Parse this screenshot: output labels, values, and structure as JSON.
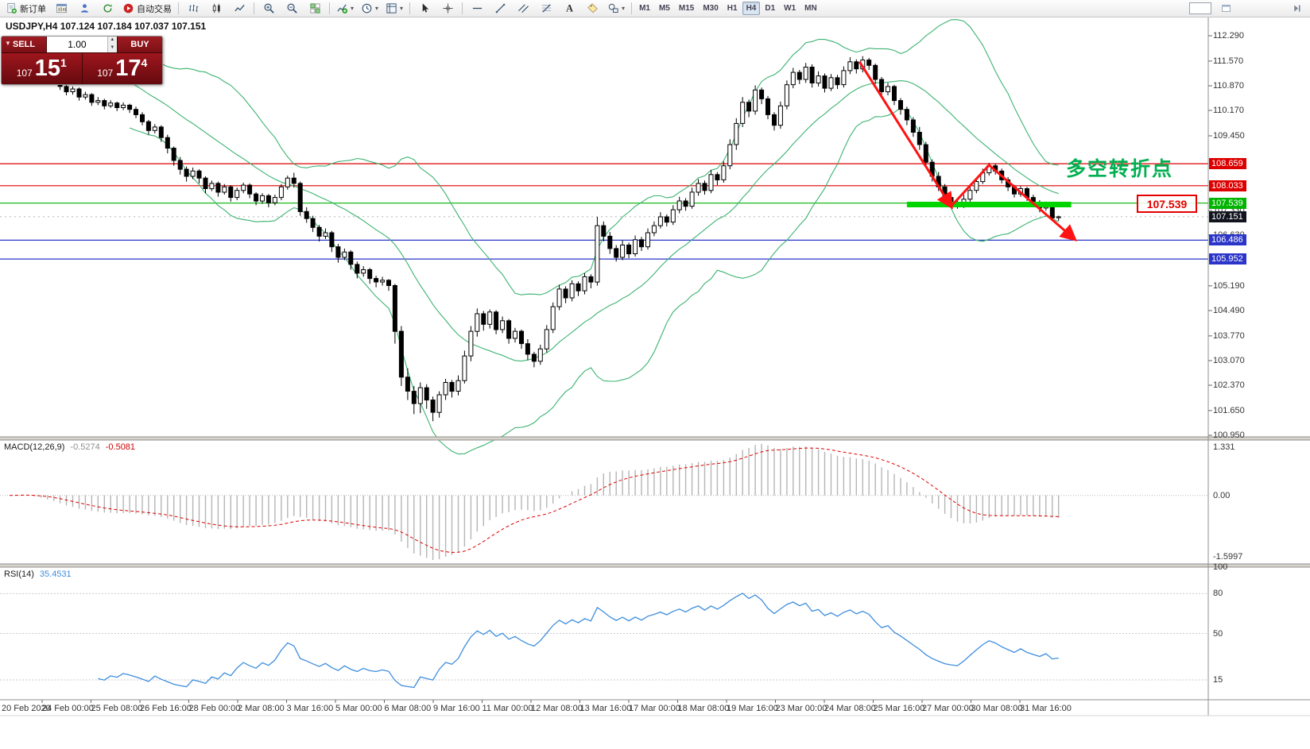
{
  "header": {
    "symbol_line": "USDJPY,H4  107.124 107.184 107.037 107.151"
  },
  "toolbar": {
    "items": [
      {
        "icon": "docplus",
        "label": "新订单",
        "name": "new-order-button"
      },
      {
        "icon": "wincandle",
        "name": "new-chart-button"
      },
      {
        "icon": "person",
        "name": "profiles-button"
      },
      {
        "icon": "refresh",
        "name": "refresh-button"
      },
      {
        "icon": "play",
        "label": "自动交易",
        "name": "autotrading-button"
      },
      {
        "sep": true
      },
      {
        "icon": "bars",
        "name": "bar-chart-button"
      },
      {
        "icon": "candles",
        "name": "candlestick-chart-button"
      },
      {
        "icon": "linechart",
        "name": "line-chart-button"
      },
      {
        "sep": true
      },
      {
        "icon": "zoomin",
        "name": "zoom-in-button"
      },
      {
        "icon": "zoomout",
        "name": "zoom-out-button"
      },
      {
        "icon": "grid",
        "name": "tile-windows-button"
      },
      {
        "sep": true
      },
      {
        "icon": "indplus",
        "caret": true,
        "name": "indicators-button"
      },
      {
        "icon": "clock",
        "caret": true,
        "name": "periods-button"
      },
      {
        "icon": "template",
        "caret": true,
        "name": "templates-button"
      },
      {
        "sep": true
      },
      {
        "icon": "cursor",
        "name": "cursor-button"
      },
      {
        "icon": "cross",
        "name": "crosshair-button"
      },
      {
        "sep": true
      },
      {
        "icon": "hline",
        "name": "horizontal-line-button"
      },
      {
        "icon": "tline",
        "name": "trendline-button"
      },
      {
        "icon": "channel",
        "name": "channel-button"
      },
      {
        "icon": "fibo",
        "name": "fibonacci-button"
      },
      {
        "icon": "textA",
        "name": "text-button"
      },
      {
        "icon": "labeltag",
        "name": "label-button"
      },
      {
        "icon": "shapes",
        "caret": true,
        "name": "shapes-button"
      },
      {
        "sep": true
      }
    ],
    "timeframes": [
      "M1",
      "M5",
      "M15",
      "M30",
      "H1",
      "H4",
      "D1",
      "W1",
      "MN"
    ],
    "active_timeframe": "H4"
  },
  "one_click": {
    "sell_label": "SELL",
    "buy_label": "BUY",
    "volume": "1.00",
    "sell_prefix": "107",
    "sell_big": "15",
    "sell_sup": "1",
    "buy_prefix": "107",
    "buy_big": "17",
    "buy_sup": "4"
  },
  "indicators": {
    "macd_title": "MACD(12,26,9)",
    "macd_value_main": "-0.5274",
    "macd_value_signal": "-0.5081",
    "rsi_title": "RSI(14)",
    "rsi_value": "35.4531"
  },
  "annotations": {
    "pivot_text": "多空转折点",
    "callout_price": "107.539"
  },
  "levels": [
    {
      "label": "108.659",
      "price": 108.659,
      "color": "#dd0000"
    },
    {
      "label": "108.033",
      "price": 108.033,
      "color": "#dd0000"
    },
    {
      "label": "107.539",
      "price": 107.539,
      "color": "#00b400"
    },
    {
      "label": "106.486",
      "price": 106.486,
      "color": "#2b35c8"
    },
    {
      "label": "105.952",
      "price": 105.952,
      "color": "#2b35c8"
    }
  ],
  "bid": {
    "label": "107.151",
    "price": 107.151
  },
  "axis": {
    "price_ticks": [
      "112.290",
      "111.570",
      "110.870",
      "110.170",
      "109.450",
      "107.330",
      "106.630",
      "105.190",
      "104.490",
      "103.770",
      "103.070",
      "102.370",
      "101.650",
      "100.950"
    ],
    "macd_ticks": [
      "1.331",
      "0.00",
      "-1.5997"
    ],
    "rsi_ticks": [
      "100",
      "80",
      "50",
      "15"
    ]
  },
  "time_axis": [
    "20 Feb 2020",
    "24 Feb 00:00",
    "25 Feb 08:00",
    "26 Feb 16:00",
    "28 Feb 00:00",
    "2 Mar 08:00",
    "3 Mar 16:00",
    "5 Mar 00:00",
    "6 Mar 08:00",
    "9 Mar 16:00",
    "11 Mar 00:00",
    "12 Mar 08:00",
    "13 Mar 16:00",
    "17 Mar 00:00",
    "18 Mar 08:00",
    "19 Mar 16:00",
    "23 Mar 00:00",
    "24 Mar 08:00",
    "25 Mar 16:00",
    "27 Mar 00:00",
    "30 Mar 08:00",
    "31 Mar 16:00"
  ],
  "chart_data": {
    "type": "candlestick",
    "symbol": "USDJPY",
    "timeframe": "H4",
    "title": "USDJPY,H4",
    "ohlc_current": {
      "open": 107.124,
      "high": 107.184,
      "low": 107.037,
      "close": 107.151
    },
    "price_range": [
      100.95,
      112.29
    ],
    "candles": [
      [
        111.8,
        112.05,
        111.7,
        111.95
      ],
      [
        111.95,
        112.22,
        111.85,
        112.1
      ],
      [
        112.1,
        112.18,
        111.95,
        112.05
      ],
      [
        112.05,
        112.1,
        111.75,
        111.85
      ],
      [
        111.85,
        111.92,
        111.5,
        111.6
      ],
      [
        111.6,
        111.72,
        111.35,
        111.45
      ],
      [
        111.45,
        111.58,
        111.25,
        111.35
      ],
      [
        111.35,
        111.42,
        111.1,
        111.2
      ],
      [
        111.2,
        111.25,
        110.75,
        110.85
      ],
      [
        110.85,
        110.98,
        110.6,
        110.7
      ],
      [
        110.7,
        110.85,
        110.62,
        110.78
      ],
      [
        110.78,
        110.82,
        110.45,
        110.55
      ],
      [
        110.55,
        110.7,
        110.48,
        110.62
      ],
      [
        110.62,
        110.66,
        110.3,
        110.4
      ],
      [
        110.4,
        110.55,
        110.32,
        110.45
      ],
      [
        110.45,
        110.5,
        110.2,
        110.3
      ],
      [
        110.3,
        110.46,
        110.24,
        110.38
      ],
      [
        110.38,
        110.42,
        110.15,
        110.25
      ],
      [
        110.25,
        110.4,
        110.18,
        110.32
      ],
      [
        110.32,
        110.36,
        110.1,
        110.2
      ],
      [
        110.2,
        110.28,
        109.95,
        110.05
      ],
      [
        110.05,
        110.12,
        109.75,
        109.85
      ],
      [
        109.85,
        109.9,
        109.48,
        109.6
      ],
      [
        109.6,
        109.78,
        109.52,
        109.7
      ],
      [
        109.7,
        109.75,
        109.28,
        109.4
      ],
      [
        109.4,
        109.48,
        108.95,
        109.1
      ],
      [
        109.1,
        109.15,
        108.6,
        108.75
      ],
      [
        108.75,
        108.85,
        108.35,
        108.5
      ],
      [
        108.5,
        108.58,
        108.15,
        108.3
      ],
      [
        108.3,
        108.55,
        108.22,
        108.45
      ],
      [
        108.45,
        108.5,
        108.1,
        108.25
      ],
      [
        108.25,
        108.3,
        107.82,
        107.95
      ],
      [
        107.95,
        108.18,
        107.88,
        108.1
      ],
      [
        108.1,
        108.15,
        107.72,
        107.85
      ],
      [
        107.85,
        108.08,
        107.78,
        108.0
      ],
      [
        108.0,
        108.05,
        107.58,
        107.7
      ],
      [
        107.7,
        107.98,
        107.62,
        107.9
      ],
      [
        107.9,
        108.12,
        107.82,
        108.05
      ],
      [
        108.05,
        108.1,
        107.68,
        107.8
      ],
      [
        107.8,
        107.85,
        107.48,
        107.6
      ],
      [
        107.6,
        107.82,
        107.52,
        107.75
      ],
      [
        107.75,
        107.8,
        107.42,
        107.55
      ],
      [
        107.55,
        107.78,
        107.48,
        107.7
      ],
      [
        107.7,
        108.08,
        107.62,
        108.0
      ],
      [
        108.0,
        108.32,
        107.92,
        108.25
      ],
      [
        108.25,
        108.4,
        107.98,
        108.1
      ],
      [
        108.1,
        108.15,
        107.18,
        107.3
      ],
      [
        107.3,
        107.42,
        106.98,
        107.1
      ],
      [
        107.1,
        107.18,
        106.72,
        106.85
      ],
      [
        106.85,
        106.92,
        106.45,
        106.6
      ],
      [
        106.6,
        106.82,
        106.52,
        106.7
      ],
      [
        106.7,
        106.75,
        106.15,
        106.3
      ],
      [
        106.3,
        106.38,
        105.85,
        106.0
      ],
      [
        106.0,
        106.25,
        105.92,
        106.15
      ],
      [
        106.15,
        106.2,
        105.65,
        105.8
      ],
      [
        105.8,
        105.88,
        105.4,
        105.55
      ],
      [
        105.55,
        105.75,
        105.45,
        105.65
      ],
      [
        105.65,
        105.7,
        105.25,
        105.4
      ],
      [
        105.4,
        105.48,
        105.15,
        105.3
      ],
      [
        105.3,
        105.45,
        105.2,
        105.35
      ],
      [
        105.35,
        105.38,
        105.05,
        105.2
      ],
      [
        105.2,
        105.25,
        103.55,
        103.9
      ],
      [
        103.9,
        104.05,
        102.35,
        102.6
      ],
      [
        102.6,
        102.85,
        101.95,
        102.2
      ],
      [
        102.2,
        102.35,
        101.55,
        101.85
      ],
      [
        101.85,
        102.45,
        101.58,
        102.3
      ],
      [
        102.3,
        102.4,
        101.7,
        101.95
      ],
      [
        101.95,
        102.05,
        101.35,
        101.6
      ],
      [
        101.6,
        102.2,
        101.45,
        102.1
      ],
      [
        102.1,
        102.55,
        101.95,
        102.45
      ],
      [
        102.45,
        102.52,
        102.02,
        102.2
      ],
      [
        102.2,
        102.65,
        102.08,
        102.5
      ],
      [
        102.5,
        103.35,
        102.42,
        103.2
      ],
      [
        103.2,
        104.05,
        103.05,
        103.9
      ],
      [
        103.9,
        104.55,
        103.75,
        104.4
      ],
      [
        104.4,
        104.48,
        103.92,
        104.1
      ],
      [
        104.1,
        104.52,
        103.98,
        104.45
      ],
      [
        104.45,
        104.5,
        103.82,
        103.95
      ],
      [
        103.95,
        104.32,
        103.85,
        104.2
      ],
      [
        104.2,
        104.25,
        103.55,
        103.7
      ],
      [
        103.7,
        104.0,
        103.58,
        103.9
      ],
      [
        103.9,
        103.95,
        103.4,
        103.55
      ],
      [
        103.55,
        103.68,
        103.08,
        103.25
      ],
      [
        103.25,
        103.32,
        102.88,
        103.05
      ],
      [
        103.05,
        103.52,
        102.95,
        103.4
      ],
      [
        103.4,
        104.08,
        103.3,
        103.95
      ],
      [
        103.95,
        104.72,
        103.85,
        104.6
      ],
      [
        104.6,
        105.22,
        104.5,
        105.1
      ],
      [
        105.1,
        105.18,
        104.7,
        104.85
      ],
      [
        104.85,
        105.35,
        104.75,
        105.25
      ],
      [
        105.25,
        105.32,
        104.9,
        105.05
      ],
      [
        105.05,
        105.55,
        104.95,
        105.45
      ],
      [
        105.45,
        105.52,
        105.12,
        105.3
      ],
      [
        105.3,
        107.15,
        105.2,
        106.9
      ],
      [
        106.9,
        107.02,
        106.45,
        106.6
      ],
      [
        106.6,
        106.72,
        106.1,
        106.25
      ],
      [
        106.25,
        106.35,
        105.88,
        106.0
      ],
      [
        106.0,
        106.48,
        105.92,
        106.35
      ],
      [
        106.35,
        106.42,
        105.98,
        106.1
      ],
      [
        106.1,
        106.62,
        106.02,
        106.5
      ],
      [
        106.5,
        106.58,
        106.18,
        106.3
      ],
      [
        106.3,
        106.82,
        106.22,
        106.7
      ],
      [
        106.7,
        107.02,
        106.6,
        106.9
      ],
      [
        106.9,
        107.28,
        106.82,
        107.15
      ],
      [
        107.15,
        107.22,
        106.88,
        107.0
      ],
      [
        107.0,
        107.48,
        106.92,
        107.35
      ],
      [
        107.35,
        107.72,
        107.25,
        107.6
      ],
      [
        107.6,
        107.68,
        107.32,
        107.45
      ],
      [
        107.45,
        107.98,
        107.38,
        107.85
      ],
      [
        107.85,
        108.22,
        107.75,
        108.1
      ],
      [
        108.1,
        108.18,
        107.78,
        107.9
      ],
      [
        107.9,
        108.48,
        107.82,
        108.35
      ],
      [
        108.35,
        108.42,
        108.05,
        108.2
      ],
      [
        108.2,
        108.72,
        108.12,
        108.6
      ],
      [
        108.6,
        109.35,
        108.5,
        109.2
      ],
      [
        109.2,
        109.95,
        109.05,
        109.8
      ],
      [
        109.8,
        110.55,
        109.7,
        110.4
      ],
      [
        110.4,
        110.48,
        109.98,
        110.15
      ],
      [
        110.15,
        110.88,
        110.05,
        110.75
      ],
      [
        110.75,
        110.82,
        110.35,
        110.5
      ],
      [
        110.5,
        110.58,
        109.92,
        110.05
      ],
      [
        110.05,
        110.12,
        109.6,
        109.75
      ],
      [
        109.75,
        110.42,
        109.65,
        110.3
      ],
      [
        110.3,
        111.02,
        110.2,
        110.9
      ],
      [
        110.9,
        111.38,
        110.8,
        111.25
      ],
      [
        111.25,
        111.32,
        110.92,
        111.05
      ],
      [
        111.05,
        111.52,
        110.95,
        111.4
      ],
      [
        111.4,
        111.48,
        110.82,
        110.95
      ],
      [
        110.95,
        111.28,
        110.85,
        111.15
      ],
      [
        111.15,
        111.22,
        110.68,
        110.8
      ],
      [
        110.8,
        111.2,
        110.72,
        111.1
      ],
      [
        111.1,
        111.18,
        110.78,
        110.9
      ],
      [
        110.9,
        111.42,
        110.82,
        111.3
      ],
      [
        111.3,
        111.68,
        111.2,
        111.55
      ],
      [
        111.55,
        111.62,
        111.22,
        111.35
      ],
      [
        111.35,
        111.71,
        111.25,
        111.6
      ],
      [
        111.6,
        111.66,
        111.32,
        111.45
      ],
      [
        111.45,
        111.5,
        110.92,
        111.05
      ],
      [
        111.05,
        111.12,
        110.58,
        110.7
      ],
      [
        110.7,
        110.95,
        110.6,
        110.85
      ],
      [
        110.85,
        110.9,
        110.32,
        110.45
      ],
      [
        110.45,
        110.52,
        110.05,
        110.2
      ],
      [
        110.2,
        110.28,
        109.75,
        109.9
      ],
      [
        109.9,
        109.98,
        109.42,
        109.55
      ],
      [
        109.55,
        109.7,
        109.05,
        109.2
      ],
      [
        109.2,
        109.28,
        108.55,
        108.7
      ],
      [
        108.7,
        108.78,
        108.15,
        108.3
      ],
      [
        108.3,
        108.42,
        107.88,
        108.0
      ],
      [
        108.0,
        108.08,
        107.55,
        107.7
      ],
      [
        107.7,
        107.82,
        107.42,
        107.55
      ],
      [
        107.55,
        107.68,
        107.38,
        107.45
      ],
      [
        107.45,
        107.78,
        107.4,
        107.65
      ],
      [
        107.65,
        108.02,
        107.58,
        107.9
      ],
      [
        107.9,
        108.25,
        107.82,
        108.15
      ],
      [
        108.15,
        108.52,
        108.08,
        108.4
      ],
      [
        108.4,
        108.68,
        108.32,
        108.6
      ],
      [
        108.6,
        108.66,
        108.35,
        108.45
      ],
      [
        108.45,
        108.52,
        108.1,
        108.2
      ],
      [
        108.2,
        108.28,
        107.88,
        108.0
      ],
      [
        108.0,
        108.06,
        107.7,
        107.8
      ],
      [
        107.8,
        108.02,
        107.72,
        107.95
      ],
      [
        107.95,
        108.0,
        107.6,
        107.7
      ],
      [
        107.7,
        107.78,
        107.45,
        107.55
      ],
      [
        107.55,
        107.62,
        107.28,
        107.4
      ],
      [
        107.4,
        107.58,
        107.32,
        107.5
      ],
      [
        107.5,
        107.55,
        107.08,
        107.12
      ],
      [
        107.124,
        107.184,
        107.037,
        107.151
      ]
    ],
    "overlays": {
      "bollinger": {
        "period": 20,
        "deviation": 2,
        "color": "#3cb371"
      },
      "horizontal_levels": [
        108.659,
        108.033,
        107.539,
        106.486,
        105.952
      ],
      "support_zone": {
        "price": 107.5,
        "from_bar": 142,
        "to_bar": 168
      },
      "trend_arrow_points_bar_price": [
        [
          134.5,
          111.55
        ],
        [
          149,
          107.45
        ],
        [
          155,
          108.62
        ],
        [
          168.5,
          106.52
        ]
      ]
    },
    "macd": {
      "params": [
        12,
        26,
        9
      ],
      "last_main": -0.5274,
      "last_signal": -0.5081,
      "range": [
        -1.5997,
        1.331
      ]
    },
    "rsi": {
      "period": 14,
      "last": 35.4531,
      "levels": [
        80,
        50,
        15
      ]
    }
  }
}
